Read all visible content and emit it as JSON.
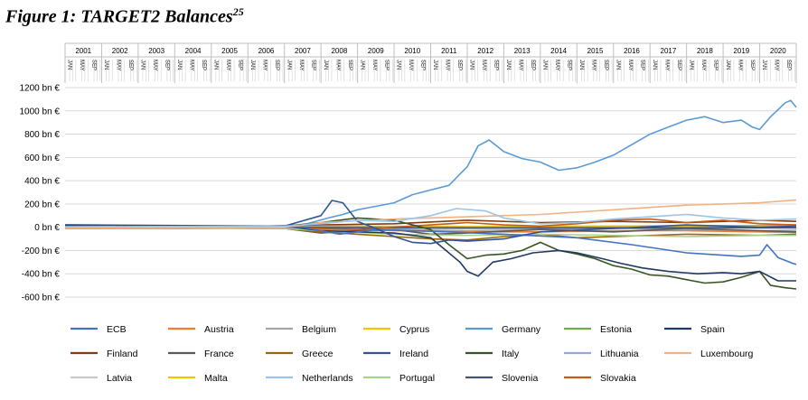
{
  "figure": {
    "title": "Figure 1: TARGET2 Balances",
    "footnote": "25"
  },
  "chart_data": {
    "type": "line",
    "x_range": [
      "2001-01",
      "2020-12"
    ],
    "years": [
      "2001",
      "2002",
      "2003",
      "2004",
      "2005",
      "2006",
      "2007",
      "2008",
      "2009",
      "2010",
      "2011",
      "2012",
      "2013",
      "2014",
      "2015",
      "2016",
      "2017",
      "2018",
      "2019",
      "2020"
    ],
    "month_labels": [
      "JAN",
      "MAY",
      "SEP"
    ],
    "ylim": [
      -600,
      1200
    ],
    "yticks": [
      -600,
      -400,
      -200,
      0,
      200,
      400,
      600,
      800,
      1000,
      1200
    ],
    "ytick_labels": [
      "-600 bn €",
      "-400 bn €",
      "-200 bn €",
      "0 bn €",
      "200 bn €",
      "400 bn €",
      "600 bn €",
      "800 bn €",
      "1000 bn €",
      "1200 bn €"
    ],
    "grid": "horizontal",
    "legend_position": "bottom",
    "series": [
      {
        "name": "ECB",
        "color": "#4472c4",
        "points": [
          [
            2001,
            0
          ],
          [
            2007.5,
            0
          ],
          [
            2008.5,
            -60
          ],
          [
            2009.5,
            -20
          ],
          [
            2011.5,
            -40
          ],
          [
            2013,
            -60
          ],
          [
            2015,
            -90
          ],
          [
            2016.5,
            -150
          ],
          [
            2018,
            -220
          ],
          [
            2019.5,
            -250
          ],
          [
            2020,
            -240
          ],
          [
            2020.2,
            -150
          ],
          [
            2020.5,
            -260
          ],
          [
            2020.9,
            -310
          ],
          [
            2021,
            -320
          ]
        ]
      },
      {
        "name": "Austria",
        "color": "#ed7d31",
        "points": [
          [
            2001,
            -10
          ],
          [
            2007,
            -10
          ],
          [
            2008,
            -20
          ],
          [
            2010,
            -30
          ],
          [
            2012,
            -40
          ],
          [
            2014,
            -40
          ],
          [
            2016,
            -30
          ],
          [
            2018,
            -30
          ],
          [
            2020,
            -40
          ],
          [
            2021,
            -45
          ]
        ]
      },
      {
        "name": "Belgium",
        "color": "#a5a5a5",
        "points": [
          [
            2001,
            0
          ],
          [
            2007,
            0
          ],
          [
            2008,
            -30
          ],
          [
            2010,
            -20
          ],
          [
            2012,
            -30
          ],
          [
            2014,
            -20
          ],
          [
            2016,
            -10
          ],
          [
            2018,
            -20
          ],
          [
            2020,
            -30
          ],
          [
            2021,
            -25
          ]
        ]
      },
      {
        "name": "Cyprus",
        "color": "#ffc000",
        "points": [
          [
            2001,
            0
          ],
          [
            2007,
            0
          ],
          [
            2008,
            -5
          ],
          [
            2012,
            -10
          ],
          [
            2016,
            -5
          ],
          [
            2021,
            0
          ]
        ]
      },
      {
        "name": "Germany",
        "color": "#5b9bd5",
        "points": [
          [
            2001,
            5
          ],
          [
            2006.5,
            10
          ],
          [
            2007.5,
            20
          ],
          [
            2008.2,
            80
          ],
          [
            2008.6,
            110
          ],
          [
            2009,
            150
          ],
          [
            2009.5,
            180
          ],
          [
            2010,
            210
          ],
          [
            2010.5,
            280
          ],
          [
            2011,
            320
          ],
          [
            2011.5,
            360
          ],
          [
            2012,
            520
          ],
          [
            2012.3,
            700
          ],
          [
            2012.6,
            750
          ],
          [
            2013,
            650
          ],
          [
            2013.5,
            590
          ],
          [
            2014,
            560
          ],
          [
            2014.5,
            490
          ],
          [
            2015,
            510
          ],
          [
            2015.5,
            560
          ],
          [
            2016,
            620
          ],
          [
            2016.5,
            710
          ],
          [
            2017,
            800
          ],
          [
            2017.5,
            860
          ],
          [
            2018,
            920
          ],
          [
            2018.5,
            950
          ],
          [
            2019,
            900
          ],
          [
            2019.5,
            920
          ],
          [
            2019.8,
            860
          ],
          [
            2020,
            840
          ],
          [
            2020.3,
            950
          ],
          [
            2020.7,
            1070
          ],
          [
            2020.85,
            1090
          ],
          [
            2021,
            1030
          ]
        ]
      },
      {
        "name": "Estonia",
        "color": "#70ad47",
        "points": [
          [
            2001,
            0
          ],
          [
            2007,
            0
          ],
          [
            2008,
            -5
          ],
          [
            2012,
            -10
          ],
          [
            2016,
            -5
          ],
          [
            2021,
            0
          ]
        ]
      },
      {
        "name": "Spain",
        "color": "#203864",
        "points": [
          [
            2001,
            20
          ],
          [
            2007,
            10
          ],
          [
            2008,
            -30
          ],
          [
            2010,
            -50
          ],
          [
            2011,
            -90
          ],
          [
            2011.8,
            -300
          ],
          [
            2012,
            -380
          ],
          [
            2012.3,
            -420
          ],
          [
            2012.7,
            -300
          ],
          [
            2013.2,
            -270
          ],
          [
            2013.8,
            -220
          ],
          [
            2014.5,
            -200
          ],
          [
            2015,
            -220
          ],
          [
            2015.7,
            -270
          ],
          [
            2016.2,
            -310
          ],
          [
            2016.8,
            -350
          ],
          [
            2017.5,
            -380
          ],
          [
            2018.3,
            -400
          ],
          [
            2019,
            -390
          ],
          [
            2019.5,
            -400
          ],
          [
            2020,
            -380
          ],
          [
            2020.5,
            -460
          ],
          [
            2021,
            -460
          ]
        ]
      },
      {
        "name": "Finland",
        "color": "#843c0c",
        "points": [
          [
            2001,
            -5
          ],
          [
            2007,
            0
          ],
          [
            2008,
            20
          ],
          [
            2010,
            30
          ],
          [
            2012,
            60
          ],
          [
            2014,
            40
          ],
          [
            2016,
            50
          ],
          [
            2018,
            40
          ],
          [
            2020,
            60
          ],
          [
            2021,
            50
          ]
        ]
      },
      {
        "name": "France",
        "color": "#595959",
        "points": [
          [
            2001,
            0
          ],
          [
            2007,
            -10
          ],
          [
            2008,
            -50
          ],
          [
            2009,
            -30
          ],
          [
            2010,
            -20
          ],
          [
            2011,
            -60
          ],
          [
            2012,
            -50
          ],
          [
            2014,
            -20
          ],
          [
            2016,
            -40
          ],
          [
            2018,
            -10
          ],
          [
            2020,
            -30
          ],
          [
            2021,
            -40
          ]
        ]
      },
      {
        "name": "Greece",
        "color": "#9c6500",
        "points": [
          [
            2001,
            0
          ],
          [
            2007,
            -10
          ],
          [
            2008,
            -40
          ],
          [
            2009,
            -60
          ],
          [
            2010,
            -80
          ],
          [
            2011,
            -100
          ],
          [
            2012,
            -110
          ],
          [
            2013,
            -80
          ],
          [
            2014,
            -60
          ],
          [
            2015,
            -90
          ],
          [
            2016,
            -80
          ],
          [
            2018,
            -60
          ],
          [
            2020,
            -70
          ],
          [
            2021,
            -60
          ]
        ]
      },
      {
        "name": "Ireland",
        "color": "#2f5597",
        "points": [
          [
            2001,
            10
          ],
          [
            2007,
            10
          ],
          [
            2008,
            100
          ],
          [
            2008.3,
            230
          ],
          [
            2008.6,
            210
          ],
          [
            2009,
            50
          ],
          [
            2009.5,
            -10
          ],
          [
            2010,
            -80
          ],
          [
            2010.5,
            -130
          ],
          [
            2011,
            -140
          ],
          [
            2011.5,
            -110
          ],
          [
            2012,
            -120
          ],
          [
            2013,
            -100
          ],
          [
            2014,
            -40
          ],
          [
            2016,
            -10
          ],
          [
            2018,
            20
          ],
          [
            2020,
            0
          ],
          [
            2021,
            10
          ]
        ]
      },
      {
        "name": "Italy",
        "color": "#375623",
        "points": [
          [
            2001,
            10
          ],
          [
            2007,
            10
          ],
          [
            2008,
            40
          ],
          [
            2009,
            80
          ],
          [
            2010,
            60
          ],
          [
            2011,
            -20
          ],
          [
            2011.5,
            -150
          ],
          [
            2012,
            -270
          ],
          [
            2012.5,
            -240
          ],
          [
            2013,
            -230
          ],
          [
            2013.5,
            -200
          ],
          [
            2014,
            -130
          ],
          [
            2014.5,
            -200
          ],
          [
            2015,
            -230
          ],
          [
            2015.5,
            -270
          ],
          [
            2016,
            -330
          ],
          [
            2016.5,
            -360
          ],
          [
            2017,
            -410
          ],
          [
            2017.5,
            -420
          ],
          [
            2018,
            -450
          ],
          [
            2018.5,
            -480
          ],
          [
            2019,
            -470
          ],
          [
            2019.5,
            -430
          ],
          [
            2020,
            -380
          ],
          [
            2020.3,
            -500
          ],
          [
            2020.7,
            -520
          ],
          [
            2021,
            -530
          ]
        ]
      },
      {
        "name": "Lithuania",
        "color": "#8faadc",
        "points": [
          [
            2001,
            0
          ],
          [
            2007,
            0
          ],
          [
            2008,
            10
          ],
          [
            2012,
            5
          ],
          [
            2016,
            10
          ],
          [
            2021,
            15
          ]
        ]
      },
      {
        "name": "Luxembourg",
        "color": "#f4b183",
        "points": [
          [
            2001,
            -5
          ],
          [
            2007,
            0
          ],
          [
            2008,
            40
          ],
          [
            2010,
            70
          ],
          [
            2012,
            90
          ],
          [
            2014,
            110
          ],
          [
            2016,
            150
          ],
          [
            2018,
            190
          ],
          [
            2019,
            200
          ],
          [
            2020,
            210
          ],
          [
            2021,
            235
          ]
        ]
      },
      {
        "name": "Latvia",
        "color": "#c9c9c9",
        "points": [
          [
            2001,
            0
          ],
          [
            2007,
            -5
          ],
          [
            2010,
            -10
          ],
          [
            2014,
            -5
          ],
          [
            2021,
            -5
          ]
        ]
      },
      {
        "name": "Malta",
        "color": "#f2c300",
        "points": [
          [
            2001,
            0
          ],
          [
            2007,
            0
          ],
          [
            2012,
            5
          ],
          [
            2021,
            5
          ]
        ]
      },
      {
        "name": "Netherlands",
        "color": "#9dc3e6",
        "points": [
          [
            2001,
            5
          ],
          [
            2007,
            10
          ],
          [
            2008,
            30
          ],
          [
            2009,
            60
          ],
          [
            2010,
            50
          ],
          [
            2011,
            100
          ],
          [
            2011.7,
            160
          ],
          [
            2012.5,
            140
          ],
          [
            2013,
            80
          ],
          [
            2014,
            30
          ],
          [
            2015,
            40
          ],
          [
            2016,
            70
          ],
          [
            2017,
            90
          ],
          [
            2018,
            110
          ],
          [
            2019,
            80
          ],
          [
            2020,
            60
          ],
          [
            2021,
            70
          ]
        ]
      },
      {
        "name": "Portugal",
        "color": "#a9d18e",
        "points": [
          [
            2001,
            0
          ],
          [
            2007,
            -10
          ],
          [
            2008,
            -30
          ],
          [
            2010,
            -60
          ],
          [
            2012,
            -70
          ],
          [
            2014,
            -60
          ],
          [
            2016,
            -70
          ],
          [
            2018,
            -80
          ],
          [
            2020,
            -70
          ],
          [
            2021,
            -70
          ]
        ]
      },
      {
        "name": "Slovenia",
        "color": "#44546a",
        "points": [
          [
            2001,
            0
          ],
          [
            2007,
            0
          ],
          [
            2010,
            -5
          ],
          [
            2014,
            -5
          ],
          [
            2021,
            -5
          ]
        ]
      },
      {
        "name": "Slovakia",
        "color": "#c55a11",
        "points": [
          [
            2001,
            0
          ],
          [
            2007,
            0
          ],
          [
            2009,
            -20
          ],
          [
            2011,
            20
          ],
          [
            2012,
            40
          ],
          [
            2013,
            20
          ],
          [
            2014,
            10
          ],
          [
            2015,
            30
          ],
          [
            2016,
            60
          ],
          [
            2017,
            70
          ],
          [
            2018,
            40
          ],
          [
            2019,
            60
          ],
          [
            2020,
            30
          ],
          [
            2021,
            20
          ]
        ]
      }
    ]
  }
}
